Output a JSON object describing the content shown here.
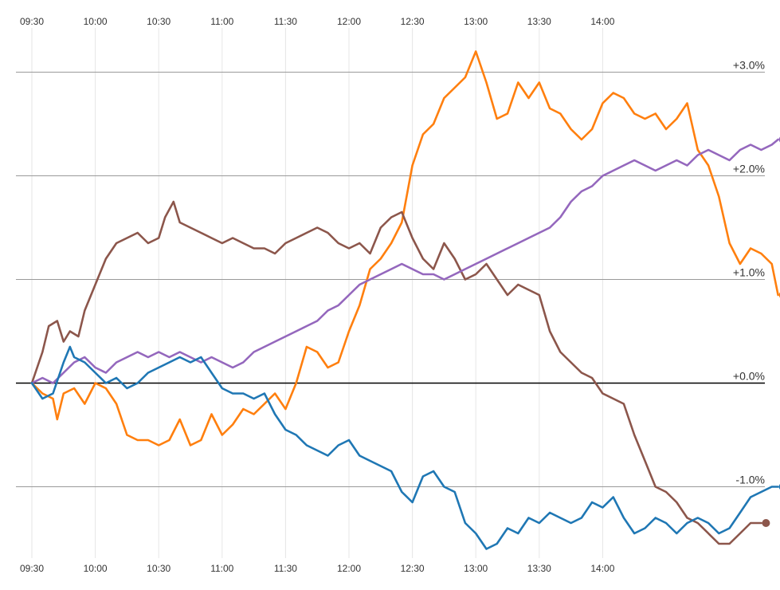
{
  "chart_data": {
    "type": "line",
    "x_ticks": [
      "09:30",
      "10:00",
      "10:30",
      "11:00",
      "11:30",
      "12:00",
      "12:30",
      "13:00",
      "13:30",
      "14:00"
    ],
    "y_ticks": [
      {
        "value": 3,
        "label": "+3.0%"
      },
      {
        "value": 2,
        "label": "+2.0%"
      },
      {
        "value": 1,
        "label": "+1.0%"
      },
      {
        "value": 0,
        "label": "+0.0%"
      },
      {
        "value": -1,
        "label": "-1.0%"
      }
    ],
    "ylim": [
      -1.65,
      3.35
    ],
    "xlim_minutes_from_0930": [
      -3,
      310
    ],
    "grid": true,
    "zero_line": true,
    "series": [
      {
        "color": "#ff7f0e",
        "points": [
          [
            0,
            0.0
          ],
          [
            5,
            -0.1
          ],
          [
            10,
            -0.15
          ],
          [
            12,
            -0.35
          ],
          [
            15,
            -0.1
          ],
          [
            20,
            -0.05
          ],
          [
            25,
            -0.2
          ],
          [
            30,
            0.0
          ],
          [
            35,
            -0.05
          ],
          [
            40,
            -0.2
          ],
          [
            45,
            -0.5
          ],
          [
            50,
            -0.55
          ],
          [
            55,
            -0.55
          ],
          [
            60,
            -0.6
          ],
          [
            65,
            -0.55
          ],
          [
            70,
            -0.35
          ],
          [
            75,
            -0.6
          ],
          [
            80,
            -0.55
          ],
          [
            85,
            -0.3
          ],
          [
            90,
            -0.5
          ],
          [
            95,
            -0.4
          ],
          [
            100,
            -0.25
          ],
          [
            105,
            -0.3
          ],
          [
            110,
            -0.2
          ],
          [
            115,
            -0.1
          ],
          [
            120,
            -0.25
          ],
          [
            125,
            0.0
          ],
          [
            130,
            0.35
          ],
          [
            135,
            0.3
          ],
          [
            140,
            0.15
          ],
          [
            145,
            0.2
          ],
          [
            150,
            0.5
          ],
          [
            155,
            0.75
          ],
          [
            160,
            1.1
          ],
          [
            165,
            1.2
          ],
          [
            170,
            1.35
          ],
          [
            175,
            1.55
          ],
          [
            180,
            2.1
          ],
          [
            185,
            2.4
          ],
          [
            190,
            2.5
          ],
          [
            195,
            2.75
          ],
          [
            200,
            2.85
          ],
          [
            205,
            2.95
          ],
          [
            210,
            3.2
          ],
          [
            215,
            2.9
          ],
          [
            220,
            2.55
          ],
          [
            225,
            2.6
          ],
          [
            230,
            2.9
          ],
          [
            235,
            2.75
          ],
          [
            240,
            2.9
          ],
          [
            245,
            2.65
          ],
          [
            250,
            2.6
          ],
          [
            255,
            2.45
          ],
          [
            260,
            2.35
          ],
          [
            265,
            2.45
          ],
          [
            270,
            2.7
          ],
          [
            275,
            2.8
          ],
          [
            280,
            2.75
          ],
          [
            285,
            2.6
          ],
          [
            290,
            2.55
          ],
          [
            295,
            2.6
          ],
          [
            300,
            2.45
          ],
          [
            305,
            2.55
          ],
          [
            310,
            2.7
          ],
          [
            315,
            2.25
          ],
          [
            320,
            2.1
          ],
          [
            325,
            1.8
          ],
          [
            330,
            1.35
          ],
          [
            335,
            1.15
          ],
          [
            340,
            1.3
          ],
          [
            345,
            1.25
          ],
          [
            350,
            1.15
          ],
          [
            353,
            0.85
          ]
        ]
      },
      {
        "color": "#8c564b",
        "points": [
          [
            0,
            0.0
          ],
          [
            5,
            0.3
          ],
          [
            8,
            0.55
          ],
          [
            12,
            0.6
          ],
          [
            15,
            0.4
          ],
          [
            18,
            0.5
          ],
          [
            22,
            0.45
          ],
          [
            25,
            0.7
          ],
          [
            30,
            0.95
          ],
          [
            35,
            1.2
          ],
          [
            40,
            1.35
          ],
          [
            45,
            1.4
          ],
          [
            50,
            1.45
          ],
          [
            55,
            1.35
          ],
          [
            60,
            1.4
          ],
          [
            63,
            1.6
          ],
          [
            67,
            1.75
          ],
          [
            70,
            1.55
          ],
          [
            75,
            1.5
          ],
          [
            80,
            1.45
          ],
          [
            85,
            1.4
          ],
          [
            90,
            1.35
          ],
          [
            95,
            1.4
          ],
          [
            100,
            1.35
          ],
          [
            105,
            1.3
          ],
          [
            110,
            1.3
          ],
          [
            115,
            1.25
          ],
          [
            120,
            1.35
          ],
          [
            125,
            1.4
          ],
          [
            130,
            1.45
          ],
          [
            135,
            1.5
          ],
          [
            140,
            1.45
          ],
          [
            145,
            1.35
          ],
          [
            150,
            1.3
          ],
          [
            155,
            1.35
          ],
          [
            160,
            1.25
          ],
          [
            165,
            1.5
          ],
          [
            170,
            1.6
          ],
          [
            175,
            1.65
          ],
          [
            180,
            1.4
          ],
          [
            185,
            1.2
          ],
          [
            190,
            1.1
          ],
          [
            195,
            1.35
          ],
          [
            200,
            1.2
          ],
          [
            205,
            1.0
          ],
          [
            210,
            1.05
          ],
          [
            215,
            1.15
          ],
          [
            220,
            1.0
          ],
          [
            225,
            0.85
          ],
          [
            230,
            0.95
          ],
          [
            235,
            0.9
          ],
          [
            240,
            0.85
          ],
          [
            245,
            0.5
          ],
          [
            250,
            0.3
          ],
          [
            255,
            0.2
          ],
          [
            260,
            0.1
          ],
          [
            265,
            0.05
          ],
          [
            270,
            -0.1
          ],
          [
            275,
            -0.15
          ],
          [
            280,
            -0.2
          ],
          [
            285,
            -0.5
          ],
          [
            290,
            -0.75
          ],
          [
            295,
            -1.0
          ],
          [
            300,
            -1.05
          ],
          [
            305,
            -1.15
          ],
          [
            310,
            -1.3
          ],
          [
            315,
            -1.35
          ],
          [
            320,
            -1.45
          ],
          [
            325,
            -1.55
          ],
          [
            330,
            -1.55
          ],
          [
            335,
            -1.45
          ],
          [
            340,
            -1.35
          ],
          [
            345,
            -1.35
          ]
        ]
      },
      {
        "color": "#9467bd",
        "points": [
          [
            0,
            0.0
          ],
          [
            5,
            0.05
          ],
          [
            10,
            0.0
          ],
          [
            15,
            0.1
          ],
          [
            20,
            0.2
          ],
          [
            25,
            0.25
          ],
          [
            30,
            0.15
          ],
          [
            35,
            0.1
          ],
          [
            40,
            0.2
          ],
          [
            45,
            0.25
          ],
          [
            50,
            0.3
          ],
          [
            55,
            0.25
          ],
          [
            60,
            0.3
          ],
          [
            65,
            0.25
          ],
          [
            70,
            0.3
          ],
          [
            75,
            0.25
          ],
          [
            80,
            0.2
          ],
          [
            85,
            0.25
          ],
          [
            90,
            0.2
          ],
          [
            95,
            0.15
          ],
          [
            100,
            0.2
          ],
          [
            105,
            0.3
          ],
          [
            110,
            0.35
          ],
          [
            115,
            0.4
          ],
          [
            120,
            0.45
          ],
          [
            125,
            0.5
          ],
          [
            130,
            0.55
          ],
          [
            135,
            0.6
          ],
          [
            140,
            0.7
          ],
          [
            145,
            0.75
          ],
          [
            150,
            0.85
          ],
          [
            155,
            0.95
          ],
          [
            160,
            1.0
          ],
          [
            165,
            1.05
          ],
          [
            170,
            1.1
          ],
          [
            175,
            1.15
          ],
          [
            180,
            1.1
          ],
          [
            185,
            1.05
          ],
          [
            190,
            1.05
          ],
          [
            195,
            1.0
          ],
          [
            200,
            1.05
          ],
          [
            205,
            1.1
          ],
          [
            210,
            1.15
          ],
          [
            215,
            1.2
          ],
          [
            220,
            1.25
          ],
          [
            225,
            1.3
          ],
          [
            230,
            1.35
          ],
          [
            235,
            1.4
          ],
          [
            240,
            1.45
          ],
          [
            245,
            1.5
          ],
          [
            250,
            1.6
          ],
          [
            255,
            1.75
          ],
          [
            260,
            1.85
          ],
          [
            265,
            1.9
          ],
          [
            270,
            2.0
          ],
          [
            275,
            2.05
          ],
          [
            280,
            2.1
          ],
          [
            285,
            2.15
          ],
          [
            290,
            2.1
          ],
          [
            295,
            2.05
          ],
          [
            300,
            2.1
          ],
          [
            305,
            2.15
          ],
          [
            310,
            2.1
          ],
          [
            315,
            2.2
          ],
          [
            320,
            2.25
          ],
          [
            325,
            2.2
          ],
          [
            330,
            2.15
          ],
          [
            335,
            2.25
          ],
          [
            340,
            2.3
          ],
          [
            345,
            2.25
          ],
          [
            350,
            2.3
          ],
          [
            353,
            2.35
          ]
        ]
      },
      {
        "color": "#1f77b4",
        "points": [
          [
            0,
            0.0
          ],
          [
            5,
            -0.15
          ],
          [
            10,
            -0.1
          ],
          [
            15,
            0.2
          ],
          [
            18,
            0.35
          ],
          [
            20,
            0.25
          ],
          [
            25,
            0.2
          ],
          [
            30,
            0.1
          ],
          [
            35,
            0.0
          ],
          [
            40,
            0.05
          ],
          [
            45,
            -0.05
          ],
          [
            50,
            0.0
          ],
          [
            55,
            0.1
          ],
          [
            60,
            0.15
          ],
          [
            65,
            0.2
          ],
          [
            70,
            0.25
          ],
          [
            75,
            0.2
          ],
          [
            80,
            0.25
          ],
          [
            85,
            0.1
          ],
          [
            90,
            -0.05
          ],
          [
            95,
            -0.1
          ],
          [
            100,
            -0.1
          ],
          [
            105,
            -0.15
          ],
          [
            110,
            -0.1
          ],
          [
            115,
            -0.3
          ],
          [
            120,
            -0.45
          ],
          [
            125,
            -0.5
          ],
          [
            130,
            -0.6
          ],
          [
            135,
            -0.65
          ],
          [
            140,
            -0.7
          ],
          [
            145,
            -0.6
          ],
          [
            150,
            -0.55
          ],
          [
            155,
            -0.7
          ],
          [
            160,
            -0.75
          ],
          [
            165,
            -0.8
          ],
          [
            170,
            -0.85
          ],
          [
            175,
            -1.05
          ],
          [
            180,
            -1.15
          ],
          [
            185,
            -0.9
          ],
          [
            190,
            -0.85
          ],
          [
            195,
            -1.0
          ],
          [
            200,
            -1.05
          ],
          [
            205,
            -1.35
          ],
          [
            210,
            -1.45
          ],
          [
            215,
            -1.6
          ],
          [
            220,
            -1.55
          ],
          [
            225,
            -1.4
          ],
          [
            230,
            -1.45
          ],
          [
            235,
            -1.3
          ],
          [
            240,
            -1.35
          ],
          [
            245,
            -1.25
          ],
          [
            250,
            -1.3
          ],
          [
            255,
            -1.35
          ],
          [
            260,
            -1.3
          ],
          [
            265,
            -1.15
          ],
          [
            270,
            -1.2
          ],
          [
            275,
            -1.1
          ],
          [
            280,
            -1.3
          ],
          [
            285,
            -1.45
          ],
          [
            290,
            -1.4
          ],
          [
            295,
            -1.3
          ],
          [
            300,
            -1.35
          ],
          [
            305,
            -1.45
          ],
          [
            310,
            -1.35
          ],
          [
            315,
            -1.3
          ],
          [
            320,
            -1.35
          ],
          [
            325,
            -1.45
          ],
          [
            330,
            -1.4
          ],
          [
            335,
            -1.25
          ],
          [
            340,
            -1.1
          ],
          [
            345,
            -1.05
          ],
          [
            350,
            -1.0
          ],
          [
            353,
            -1.0
          ]
        ]
      }
    ]
  }
}
